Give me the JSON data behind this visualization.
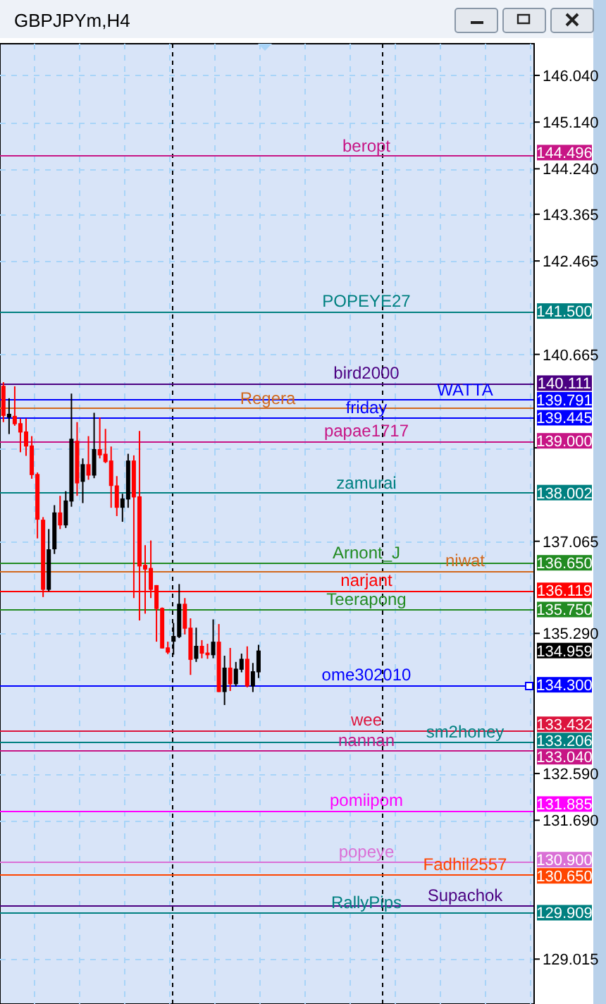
{
  "chart_data": {
    "type": "candlestick",
    "title": "GBPJPYm,H4",
    "categories": [
      null,
      null,
      null,
      null,
      null,
      null,
      null,
      null,
      null,
      null,
      null,
      null,
      null,
      null,
      null,
      null,
      null,
      null,
      null,
      null,
      null,
      null,
      null,
      null,
      null,
      null,
      null,
      null,
      null,
      null,
      null,
      null,
      null,
      null,
      null,
      null,
      null,
      null,
      null,
      null,
      null,
      null,
      null,
      null,
      null,
      null,
      null,
      null,
      null,
      null,
      null,
      null,
      null,
      null,
      null,
      null,
      null,
      null,
      null,
      null,
      null,
      null,
      null,
      null,
      null,
      null,
      null,
      null,
      null,
      null,
      null,
      null,
      null,
      null,
      null,
      null,
      null,
      null,
      null,
      null,
      null,
      null,
      null,
      null,
      null,
      null,
      null,
      null,
      null,
      null,
      null,
      null,
      null,
      null
    ],
    "ohlc": [
      [
        140.06,
        140.13,
        139.36,
        139.48
      ],
      [
        139.45,
        139.82,
        139.13,
        139.52
      ],
      [
        139.48,
        140.05,
        139.29,
        139.32
      ],
      [
        139.34,
        139.43,
        138.78,
        139.16
      ],
      [
        139.18,
        139.43,
        138.71,
        138.89
      ],
      [
        138.91,
        139.09,
        138.27,
        138.34
      ],
      [
        138.36,
        138.39,
        137.12,
        137.48
      ],
      [
        137.48,
        137.53,
        135.99,
        136.13
      ],
      [
        136.13,
        137.3,
        136.1,
        136.91
      ],
      [
        136.91,
        137.76,
        136.82,
        137.62
      ],
      [
        137.62,
        137.94,
        137.3,
        137.37
      ],
      [
        137.37,
        138.03,
        137.32,
        137.85
      ],
      [
        137.83,
        139.91,
        137.73,
        139.04
      ],
      [
        139.0,
        139.36,
        137.94,
        138.18
      ],
      [
        138.21,
        138.66,
        137.8,
        138.55
      ],
      [
        138.55,
        139.09,
        138.25,
        138.33
      ],
      [
        138.33,
        139.54,
        138.28,
        138.84
      ],
      [
        138.84,
        139.45,
        138.66,
        138.72
      ],
      [
        138.75,
        139.23,
        138.57,
        138.59
      ],
      [
        138.62,
        138.89,
        137.71,
        138.13
      ],
      [
        138.14,
        138.32,
        137.55,
        137.71
      ],
      [
        137.71,
        137.98,
        137.44,
        137.89
      ],
      [
        137.87,
        138.75,
        137.71,
        138.62
      ],
      [
        138.62,
        138.72,
        135.97,
        137.91
      ],
      [
        137.93,
        139.19,
        135.54,
        136.58
      ],
      [
        136.61,
        136.99,
        135.67,
        136.52
      ],
      [
        136.55,
        137.08,
        135.97,
        136.13
      ],
      [
        136.22,
        136.22,
        135.13,
        135.76
      ],
      [
        135.78,
        135.79,
        135.0,
        135.0
      ],
      [
        135.02,
        135.13,
        134.89,
        134.92
      ],
      [
        135.13,
        135.49,
        134.88,
        135.24
      ],
      [
        135.22,
        136.24,
        135.2,
        135.86
      ],
      [
        135.86,
        135.97,
        135.27,
        135.38
      ],
      [
        135.4,
        135.58,
        134.49,
        134.78
      ],
      [
        134.8,
        135.4,
        134.74,
        135.05
      ],
      [
        135.05,
        135.16,
        134.81,
        134.9
      ],
      [
        134.92,
        135.09,
        134.8,
        134.87
      ],
      [
        134.87,
        135.56,
        134.81,
        135.13
      ],
      [
        135.13,
        135.47,
        134.16,
        134.16
      ],
      [
        134.16,
        134.86,
        133.91,
        134.63
      ],
      [
        134.63,
        135.01,
        134.18,
        134.31
      ],
      [
        134.31,
        134.74,
        134.27,
        134.61
      ],
      [
        134.59,
        134.9,
        134.54,
        134.8
      ],
      [
        134.8,
        135.04,
        134.25,
        134.27
      ],
      [
        134.27,
        134.72,
        134.16,
        134.56
      ],
      [
        134.54,
        135.07,
        134.43,
        134.96
      ],
      null,
      null,
      null,
      null,
      null,
      null,
      null,
      null,
      null,
      null,
      null,
      null,
      null,
      null,
      null,
      null,
      null,
      null,
      null,
      null,
      null,
      null,
      null,
      null,
      null,
      null,
      null,
      null,
      null,
      null,
      null,
      null,
      null,
      null,
      null,
      null,
      null,
      null,
      null,
      null,
      null,
      null,
      null,
      null,
      null,
      null,
      null,
      null
    ],
    "colors": [
      "#ff0000",
      "#000000",
      "#ff0000",
      "#ff0000",
      "#ff0000",
      "#ff0000",
      "#ff0000",
      "#ff0000",
      "#000000",
      "#000000",
      "#ff0000",
      "#000000",
      "#000000",
      "#ff0000",
      "#000000",
      "#ff0000",
      "#000000",
      "#ff0000",
      "#ff0000",
      "#ff0000",
      "#ff0000",
      "#000000",
      "#000000",
      "#ff0000",
      "#ff0000",
      "#ff0000",
      "#ff0000",
      "#ff0000",
      "#ff0000",
      "#ff0000",
      "#000000",
      "#000000",
      "#ff0000",
      "#ff0000",
      "#000000",
      "#ff0000",
      "#ff0000",
      "#000000",
      "#ff0000",
      "#000000",
      "#ff0000",
      "#000000",
      "#000000",
      "#ff0000",
      "#000000",
      "#000000",
      null,
      null,
      null,
      null,
      null,
      null,
      null,
      null,
      null,
      null,
      null,
      null,
      null,
      null,
      null,
      null,
      null,
      null,
      null,
      null,
      null,
      null,
      null,
      null,
      null,
      null,
      null,
      null,
      null,
      null,
      null,
      null,
      null,
      null,
      null,
      null,
      null,
      null,
      null,
      null,
      null,
      null,
      null,
      null,
      null,
      null,
      null,
      null
    ],
    "ylim": [
      128.15,
      146.65
    ],
    "yticks": [
      129.015,
      {
        "value": 131.69,
        "label": "131.690"
      },
      {
        "value": 132.59,
        "label": "132.590"
      },
      {
        "value": 135.29,
        "label": "135.290"
      },
      137.065,
      {
        "value": 138.865,
        "label": null
      },
      140.665,
      142.465,
      143.365,
      {
        "value": 144.24,
        "label": "144.240"
      },
      {
        "value": 145.14,
        "label": "145.140"
      },
      {
        "value": 146.04,
        "label": "146.040"
      }
    ],
    "grid": true,
    "ref_lines": [
      {
        "axis": "y",
        "value": 144.496,
        "label": "beropt",
        "color": "#c71585"
      },
      {
        "axis": "y",
        "value": 141.5,
        "label": "POPEYE27",
        "color": "#008080"
      },
      {
        "axis": "y",
        "value": 140.111,
        "label": "bird2000",
        "color": "#4b0082"
      },
      {
        "axis": "y",
        "value": 139.791,
        "label": "WATTA",
        "color": "#0000ff"
      },
      {
        "axis": "y",
        "value": 139.445,
        "label": "friday",
        "color": "#0000ff"
      },
      {
        "axis": "y",
        "value": 139.0,
        "label": "papae1717",
        "color": "#c71585"
      },
      {
        "axis": "y",
        "value": 138.002,
        "label": "zamurai",
        "color": "#008080"
      },
      {
        "axis": "y",
        "value": 136.65,
        "label": "Arnont_J",
        "color": "#228b22"
      },
      {
        "axis": "y",
        "value": 136.119,
        "label": "narjant",
        "color": "#ff0000"
      },
      {
        "axis": "y",
        "value": 135.75,
        "label": "Teerapong",
        "color": "#228b22"
      },
      {
        "axis": "y",
        "value": 134.3,
        "label": "ome302010",
        "color": "#0000ff"
      },
      {
        "axis": "y",
        "value": 133.432,
        "label": "wee",
        "color": "#dc143c"
      },
      {
        "axis": "y",
        "value": 133.206,
        "label": "sm2honey",
        "color": "#008080"
      },
      {
        "axis": "y",
        "value": 133.04,
        "label": "nannan",
        "color": "#c71585"
      },
      {
        "axis": "y",
        "value": 131.885,
        "label": "pomiipom",
        "color": "#ff00ff"
      },
      {
        "axis": "y",
        "value": 130.9,
        "label": "popeye",
        "color": "#da70d6"
      },
      {
        "axis": "y",
        "value": 130.65,
        "label": "Fadhil2557",
        "color": "#ff4500"
      },
      {
        "axis": "y",
        "value": 129.909,
        "label": "RallyPips",
        "color": "#008080"
      },
      {
        "axis": "y",
        "value": 139.63,
        "label": "Regera",
        "color": "#d2691e"
      },
      {
        "axis": "y",
        "value": 136.5,
        "label": "niwat",
        "color": "#d2691e"
      },
      {
        "axis": "y",
        "value": 130.05,
        "label": "Supachok",
        "color": "#4b0082"
      }
    ],
    "annotations": [
      "144.496",
      "141.500",
      "140.111",
      "139.791",
      "139.445",
      "139.000",
      "138.002",
      "136.650",
      "136.119",
      "135.750",
      "134.959",
      "134.300",
      "133.432",
      "133.206",
      "133.040",
      "131.885",
      "130.900",
      "130.650",
      "129.909"
    ]
  }
}
